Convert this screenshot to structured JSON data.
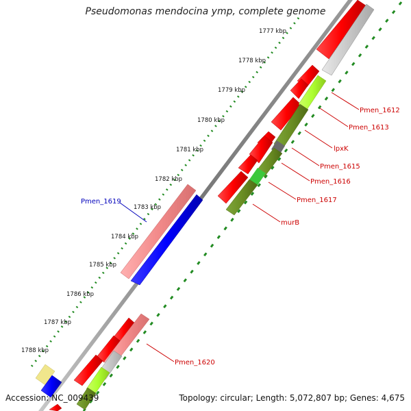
{
  "title": "Pseudomonas mendocina ymp, complete genome",
  "accession": "Accession: NC_009439",
  "topology": "Topology: circular; Length: 5,072,807 bp; Genes: 4,675",
  "ticks": [
    "1777 kbp",
    "1778 kbp",
    "1779 kbp",
    "1780 kbp",
    "1781 kbp",
    "1782 kbp",
    "1783 kbp",
    "1784 kbp",
    "1785 kbp",
    "1786 kbp",
    "1787 kbp",
    "1788 kbp"
  ],
  "gene_labels": [
    {
      "label": "Pmen_1612",
      "color": "#cc0000"
    },
    {
      "label": "Pmen_1613",
      "color": "#cc0000"
    },
    {
      "label": "lpxK",
      "color": "#cc0000"
    },
    {
      "label": "Pmen_1615",
      "color": "#cc0000"
    },
    {
      "label": "Pmen_1616",
      "color": "#cc0000"
    },
    {
      "label": "Pmen_1617",
      "color": "#cc0000"
    },
    {
      "label": "murB",
      "color": "#cc0000"
    },
    {
      "label": "Pmen_1619",
      "color": "#0000bb"
    },
    {
      "label": "Pmen_1620",
      "color": "#cc0000"
    }
  ],
  "colors": {
    "cds_forward": "#ff0000",
    "cds_reverse": "#0000ff",
    "rna": "#ccc2c2",
    "light_red": "#f59696",
    "olive": "#6b8e23",
    "lime": "#adff2f",
    "pale_yellow": "#f0e68c",
    "backbone": "#888888",
    "ticks": "#228b22"
  }
}
